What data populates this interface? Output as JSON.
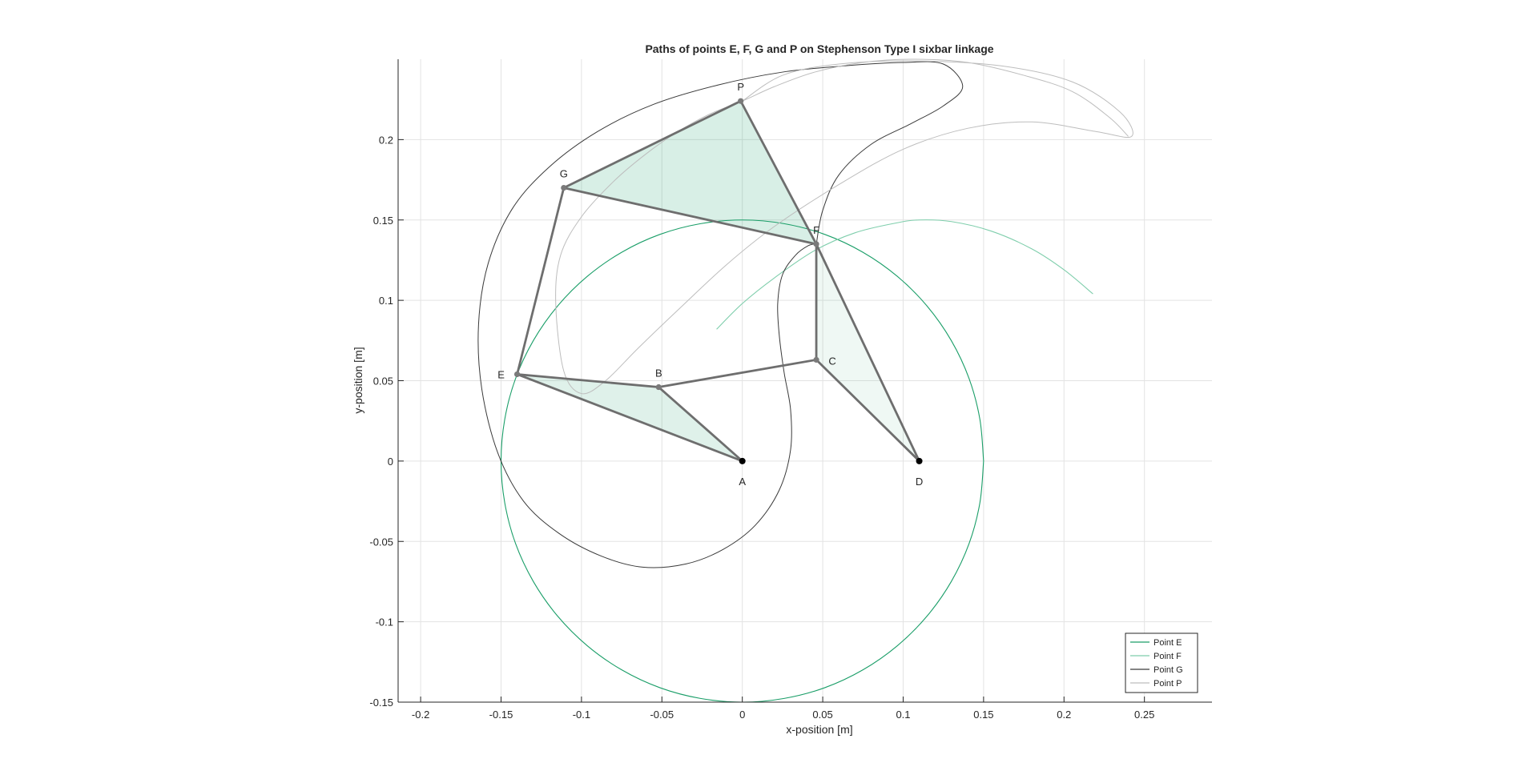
{
  "chart_data": {
    "type": "line",
    "title": "Paths of points E, F, G and P on Stephenson Type I sixbar linkage",
    "xlabel": "x-position [m]",
    "ylabel": "y-position [m]",
    "xlim": [
      -0.214,
      0.292
    ],
    "ylim": [
      -0.15,
      0.25
    ],
    "xticks": [
      -0.2,
      -0.15,
      -0.1,
      -0.05,
      0,
      0.05,
      0.1,
      0.15,
      0.2,
      0.25
    ],
    "xtick_labels": [
      "-0.2",
      "-0.15",
      "-0.1",
      "-0.05",
      "0",
      "0.05",
      "0.1",
      "0.15",
      "0.2",
      "0.25"
    ],
    "yticks": [
      -0.15,
      -0.1,
      -0.05,
      0,
      0.05,
      0.1,
      0.15,
      0.2
    ],
    "ytick_labels": [
      "-0.15",
      "-0.1",
      "-0.05",
      "0",
      "0.05",
      "0.1",
      "0.15",
      "0.2"
    ],
    "grid": true,
    "legend_position": "bottom-right",
    "series": [
      {
        "name": "Point E",
        "color": "#1a9e68",
        "width": 1.1,
        "x": [
          0.15,
          0.1477,
          0.141,
          0.1299,
          0.1149,
          0.0964,
          0.075,
          0.0513,
          0.026,
          0.0,
          -0.026,
          -0.0513,
          -0.075,
          -0.0964,
          -0.1149,
          -0.1299,
          -0.141,
          -0.1477,
          -0.15,
          -0.1477,
          -0.141,
          -0.1299,
          -0.1149,
          -0.0964,
          -0.075,
          -0.0513,
          -0.026,
          0.0,
          0.026,
          0.0513,
          0.075,
          0.0964,
          0.1149,
          0.1299,
          0.141,
          0.1477,
          0.15
        ],
        "y": [
          0.0,
          0.026,
          0.0513,
          0.075,
          0.0964,
          0.1149,
          0.1299,
          0.141,
          0.1477,
          0.15,
          0.1477,
          0.141,
          0.1299,
          0.1149,
          0.0964,
          0.075,
          0.0513,
          0.026,
          0.0,
          -0.026,
          -0.0513,
          -0.075,
          -0.0964,
          -0.1149,
          -0.1299,
          -0.141,
          -0.1477,
          -0.15,
          -0.1477,
          -0.141,
          -0.1299,
          -0.1149,
          -0.0964,
          -0.075,
          -0.0513,
          -0.026,
          0.0
        ]
      },
      {
        "name": "Point F",
        "color": "#7fceac",
        "width": 1.1,
        "x": [
          -0.016,
          0.0,
          0.02,
          0.045,
          0.07,
          0.095,
          0.11,
          0.13,
          0.155,
          0.18,
          0.2,
          0.218
        ],
        "y": [
          0.082,
          0.098,
          0.114,
          0.131,
          0.142,
          0.148,
          0.15,
          0.149,
          0.143,
          0.132,
          0.119,
          0.104
        ]
      },
      {
        "name": "Point G",
        "color": "#3a3a3a",
        "width": 1.0,
        "x": [
          0.046,
          0.05,
          0.06,
          0.08,
          0.105,
          0.125,
          0.137,
          0.125,
          0.1,
          0.065,
          0.025,
          -0.015,
          -0.055,
          -0.09,
          -0.12,
          -0.143,
          -0.158,
          -0.164,
          -0.162,
          -0.152,
          -0.136,
          -0.114,
          -0.088,
          -0.062,
          -0.035,
          -0.012,
          0.008,
          0.023,
          0.03,
          0.03,
          0.026,
          0.023,
          0.022,
          0.025,
          0.033,
          0.041,
          0.046
        ],
        "y": [
          0.135,
          0.156,
          0.178,
          0.197,
          0.21,
          0.221,
          0.233,
          0.247,
          0.248,
          0.246,
          0.242,
          0.234,
          0.222,
          0.205,
          0.183,
          0.157,
          0.123,
          0.085,
          0.045,
          0.005,
          -0.025,
          -0.045,
          -0.059,
          -0.066,
          -0.064,
          -0.055,
          -0.04,
          -0.018,
          0.007,
          0.032,
          0.055,
          0.078,
          0.098,
          0.116,
          0.128,
          0.134,
          0.135
        ]
      },
      {
        "name": "Point P",
        "color": "#bdbdbd",
        "width": 1.0,
        "x": [
          0.0,
          0.025,
          0.06,
          0.105,
          0.16,
          0.205,
          0.235,
          0.242,
          0.22,
          0.18,
          0.14,
          0.1,
          0.06,
          0.02,
          -0.01,
          -0.04,
          -0.065,
          -0.085,
          -0.1,
          -0.111,
          -0.116,
          -0.113,
          -0.1,
          -0.08,
          -0.06,
          -0.04,
          -0.02,
          0.0,
          0.02,
          0.045,
          0.075,
          0.105,
          0.14,
          0.175,
          0.205,
          0.228,
          0.24
        ],
        "y": [
          0.224,
          0.24,
          0.247,
          0.249,
          0.246,
          0.236,
          0.217,
          0.202,
          0.205,
          0.211,
          0.207,
          0.194,
          0.172,
          0.146,
          0.122,
          0.094,
          0.07,
          0.05,
          0.042,
          0.056,
          0.098,
          0.128,
          0.152,
          0.174,
          0.191,
          0.205,
          0.216,
          0.224,
          0.233,
          0.242,
          0.248,
          0.25,
          0.248,
          0.24,
          0.23,
          0.214,
          0.202
        ]
      }
    ],
    "links": [
      {
        "name": "link-ABE",
        "from": "A",
        "to": "B"
      },
      {
        "name": "link-BE",
        "from": "B",
        "to": "E"
      },
      {
        "name": "link-AE",
        "from": "A",
        "to": "E"
      },
      {
        "name": "link-BC",
        "from": "B",
        "to": "C"
      },
      {
        "name": "link-CD",
        "from": "C",
        "to": "D"
      },
      {
        "name": "link-DF",
        "from": "D",
        "to": "F"
      },
      {
        "name": "link-CF",
        "from": "C",
        "to": "F"
      },
      {
        "name": "link-EG",
        "from": "E",
        "to": "G"
      },
      {
        "name": "link-GF",
        "from": "G",
        "to": "F"
      },
      {
        "name": "link-GP",
        "from": "G",
        "to": "P"
      },
      {
        "name": "link-PF",
        "from": "P",
        "to": "F"
      }
    ],
    "triangles": [
      {
        "name": "triangle-ABE",
        "vertices": [
          "A",
          "B",
          "E"
        ],
        "color": "#1a9e68",
        "opacity": 0.14
      },
      {
        "name": "triangle-CDF",
        "vertices": [
          "C",
          "D",
          "F"
        ],
        "color": "#1a9e68",
        "opacity": 0.07
      },
      {
        "name": "triangle-GFP",
        "vertices": [
          "G",
          "F",
          "P"
        ],
        "color": "#1a9e68",
        "opacity": 0.17
      }
    ],
    "joints": [
      {
        "label": "A",
        "x": 0.0,
        "y": 0.0,
        "fixed": true,
        "label_pos": "below"
      },
      {
        "label": "B",
        "x": -0.052,
        "y": 0.046,
        "fixed": false,
        "label_pos": "above"
      },
      {
        "label": "C",
        "x": 0.046,
        "y": 0.063,
        "fixed": false,
        "label_pos": "right"
      },
      {
        "label": "D",
        "x": 0.11,
        "y": 0.0,
        "fixed": true,
        "label_pos": "below"
      },
      {
        "label": "E",
        "x": -0.14,
        "y": 0.054,
        "fixed": false,
        "label_pos": "left"
      },
      {
        "label": "F",
        "x": 0.046,
        "y": 0.135,
        "fixed": false,
        "label_pos": "above"
      },
      {
        "label": "G",
        "x": -0.111,
        "y": 0.17,
        "fixed": false,
        "label_pos": "above"
      },
      {
        "label": "P",
        "x": -0.001,
        "y": 0.224,
        "fixed": false,
        "label_pos": "above"
      }
    ]
  }
}
